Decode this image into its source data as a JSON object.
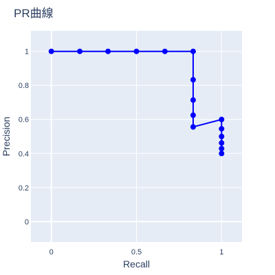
{
  "chart_data": {
    "type": "line",
    "title": "PR曲線",
    "xlabel": "Recall",
    "ylabel": "Precision",
    "xlim": [
      -0.12,
      1.12
    ],
    "ylim": [
      -0.12,
      1.12
    ],
    "x_ticks": [
      0,
      0.5,
      1
    ],
    "x_tick_labels": [
      "0",
      "0.5",
      "1"
    ],
    "y_ticks": [
      0,
      0.2,
      0.4,
      0.6,
      0.8,
      1
    ],
    "y_tick_labels": [
      "0",
      "0.2",
      "0.4",
      "0.6",
      "0.8",
      "1"
    ],
    "grid": true,
    "series": [
      {
        "color": "#0000ff",
        "mode": "lines+markers",
        "x": [
          0,
          0.167,
          0.333,
          0.5,
          0.667,
          0.833,
          0.833,
          0.833,
          0.833,
          0.833,
          1,
          1,
          1,
          1,
          1,
          1
        ],
        "y": [
          1,
          1,
          1,
          1,
          1,
          1,
          0.833,
          0.714,
          0.625,
          0.556,
          0.6,
          0.545,
          0.5,
          0.462,
          0.429,
          0.4
        ]
      }
    ]
  },
  "colors": {
    "plot_background": "#e5ecf6",
    "grid": "#ffffff",
    "text": "#2a3f5f",
    "series": "#0000ff"
  }
}
